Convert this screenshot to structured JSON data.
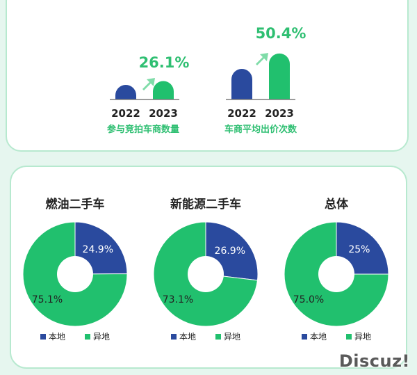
{
  "colors": {
    "blue": "#2a4a9e",
    "green": "#21c06e",
    "accent_text": "#2fbf72",
    "dark_text": "#222222",
    "background": "#e6f6ef"
  },
  "chart_data": [
    {
      "type": "bar",
      "categories": [
        "2022",
        "2023"
      ],
      "values": [
        1,
        1.261
      ],
      "growth_label": "26.1%",
      "xlabel": "参与竞拍车商数量",
      "note": "relative heights; 2023 is 26.1% above 2022"
    },
    {
      "type": "bar",
      "categories": [
        "2022",
        "2023"
      ],
      "values": [
        1,
        1.504
      ],
      "growth_label": "50.4%",
      "xlabel": "车商平均出价次数",
      "note": "relative heights; 2023 is 50.4% above 2022"
    },
    {
      "type": "pie",
      "title": "燃油二手车",
      "labels": [
        "本地",
        "异地"
      ],
      "values": [
        24.9,
        75.1
      ],
      "value_labels": [
        "24.9%",
        "75.1%"
      ]
    },
    {
      "type": "pie",
      "title": "新能源二手车",
      "labels": [
        "本地",
        "异地"
      ],
      "values": [
        26.9,
        73.1
      ],
      "value_labels": [
        "26.9%",
        "73.1%"
      ]
    },
    {
      "type": "pie",
      "title": "总体",
      "labels": [
        "本地",
        "异地"
      ],
      "values": [
        25,
        75.0
      ],
      "value_labels": [
        "25%",
        "75.0%"
      ]
    }
  ],
  "watermark": "Discuz!"
}
